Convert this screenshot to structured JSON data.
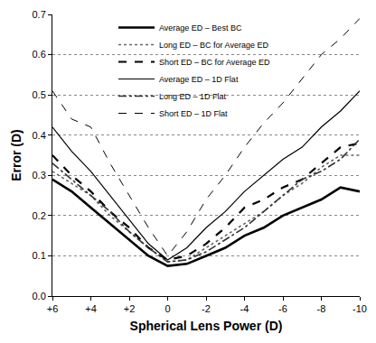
{
  "chart_data": {
    "type": "line",
    "x_label": "Spherical Lens Power (D)",
    "y_label": "Error (D)",
    "x": [
      6,
      5,
      4,
      3,
      2,
      1,
      0,
      -1,
      -2,
      -3,
      -4,
      -5,
      -6,
      -7,
      -8,
      -9,
      -10
    ],
    "series": [
      {
        "name": "Average ED – Best BC",
        "color": "#000000",
        "line_style": "solid",
        "values": [
          0.29,
          0.26,
          0.22,
          0.18,
          0.14,
          0.1,
          0.075,
          0.08,
          0.1,
          0.12,
          0.15,
          0.17,
          0.2,
          0.22,
          0.24,
          0.27,
          0.26
        ]
      },
      {
        "name": "Long ED – BC for Average ED",
        "color": "#666666",
        "line_style": "dotted",
        "values": [
          0.31,
          0.28,
          0.25,
          0.2,
          0.16,
          0.12,
          0.085,
          0.09,
          0.12,
          0.15,
          0.18,
          0.21,
          0.25,
          0.28,
          0.32,
          0.35,
          0.35
        ]
      },
      {
        "name": "Short ED – BC for Average ED",
        "color": "#000000",
        "line_style": "dashed",
        "values": [
          0.35,
          0.3,
          0.26,
          0.21,
          0.17,
          0.12,
          0.09,
          0.1,
          0.13,
          0.17,
          0.22,
          0.24,
          0.27,
          0.29,
          0.33,
          0.37,
          0.38
        ]
      },
      {
        "name": "Average ED – 1D Flat",
        "color": "#000000",
        "line_style": "solid",
        "values": [
          0.42,
          0.36,
          0.31,
          0.25,
          0.19,
          0.13,
          0.09,
          0.12,
          0.17,
          0.21,
          0.26,
          0.3,
          0.34,
          0.37,
          0.42,
          0.46,
          0.51
        ]
      },
      {
        "name": "Long ED – 1D Flat",
        "color": "#333333",
        "line_style": "dashdot",
        "values": [
          0.33,
          0.29,
          0.25,
          0.21,
          0.16,
          0.12,
          0.085,
          0.09,
          0.11,
          0.14,
          0.17,
          0.21,
          0.25,
          0.29,
          0.31,
          0.34,
          0.39
        ]
      },
      {
        "name": "Short ED – 1D Flat",
        "color": "#000000",
        "line_style": "dashed",
        "values": [
          0.51,
          0.44,
          0.42,
          0.33,
          0.25,
          0.17,
          0.1,
          0.16,
          0.24,
          0.3,
          0.37,
          0.43,
          0.48,
          0.54,
          0.6,
          0.64,
          0.69
        ]
      }
    ],
    "xlim": [
      6,
      -10
    ],
    "xticks": [
      {
        "value": 6,
        "label": "+6"
      },
      {
        "value": 4,
        "label": "+4"
      },
      {
        "value": 2,
        "label": "+2"
      },
      0,
      -2,
      -4,
      -6,
      -8,
      -10
    ],
    "ylim": [
      0,
      0.7
    ],
    "yticks": [
      {
        "value": 0,
        "label": "0.0"
      },
      0.1,
      0.2,
      0.3,
      0.4,
      0.5,
      0.6,
      0.7
    ],
    "grid": true,
    "legend": "top"
  }
}
